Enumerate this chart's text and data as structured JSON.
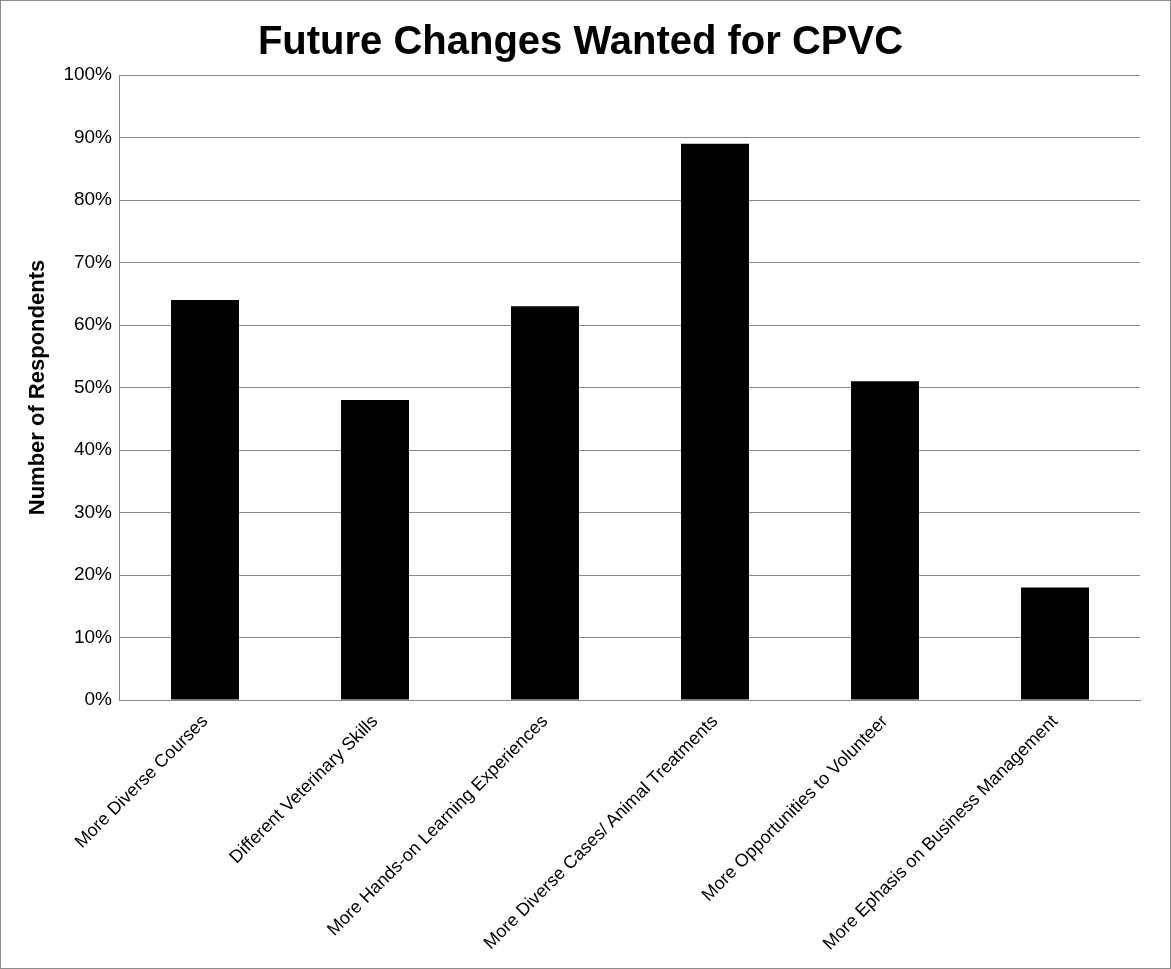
{
  "chart_data": {
    "type": "bar",
    "title": "Future Changes Wanted for CPVC",
    "ylabel": "Number of Respondents",
    "categories": [
      "More Diverse Courses",
      "Different Veterinary Skills",
      "More Hands-on Learning Experiences",
      "More Diverse Cases/ Animal Treatments",
      "More Opportunities to Volunteer",
      "More Ephasis on Business Management"
    ],
    "values": [
      64,
      48,
      63,
      89,
      51,
      18
    ],
    "color": "#000000",
    "ylim": [
      0,
      100
    ],
    "yticks": [
      {
        "value": 0,
        "label": "0%"
      },
      {
        "value": 10,
        "label": "10%"
      },
      {
        "value": 20,
        "label": "20%"
      },
      {
        "value": 30,
        "label": "30%"
      },
      {
        "value": 40,
        "label": "40%"
      },
      {
        "value": 50,
        "label": "50%"
      },
      {
        "value": 60,
        "label": "60%"
      },
      {
        "value": 70,
        "label": "70%"
      },
      {
        "value": 80,
        "label": "80%"
      },
      {
        "value": 90,
        "label": "90%"
      },
      {
        "value": 100,
        "label": "100%"
      }
    ],
    "grid": "y",
    "legend": false
  }
}
